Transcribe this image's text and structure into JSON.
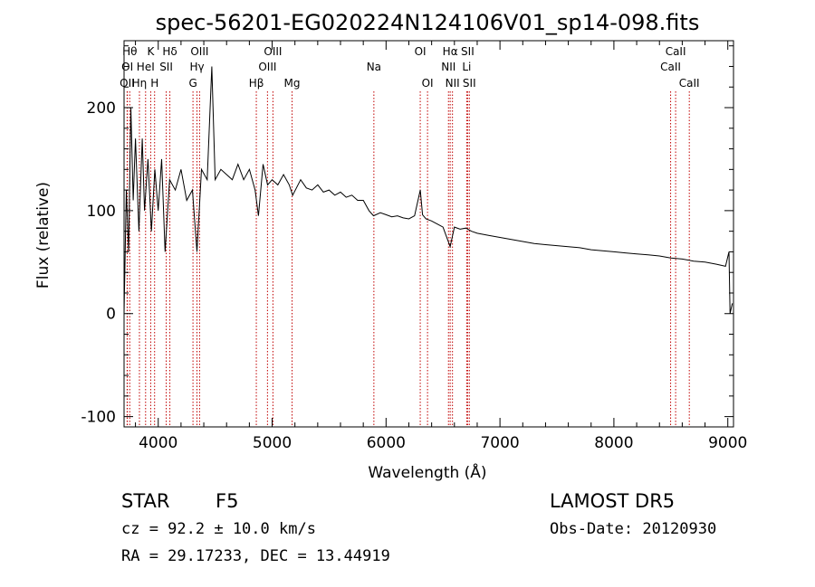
{
  "chart_data": {
    "type": "line",
    "title": "spec-56201-EG020224N124106V01_sp14-098.fits",
    "xlabel": "Wavelength (Å)",
    "ylabel": "Flux (relative)",
    "xlim": [
      3700,
      9050
    ],
    "ylim": [
      -110,
      265
    ],
    "xticks": [
      4000,
      5000,
      6000,
      7000,
      8000,
      9000
    ],
    "yticks": [
      -100,
      0,
      100,
      200
    ],
    "series": [
      {
        "values": [
          [
            3700,
            0
          ],
          [
            3720,
            120
          ],
          [
            3740,
            60
          ],
          [
            3760,
            200
          ],
          [
            3780,
            110
          ],
          [
            3800,
            170
          ],
          [
            3830,
            80
          ],
          [
            3860,
            170
          ],
          [
            3880,
            100
          ],
          [
            3910,
            150
          ],
          [
            3940,
            80
          ],
          [
            3970,
            140
          ],
          [
            4000,
            100
          ],
          [
            4030,
            150
          ],
          [
            4060,
            60
          ],
          [
            4100,
            130
          ],
          [
            4150,
            120
          ],
          [
            4200,
            140
          ],
          [
            4250,
            110
          ],
          [
            4300,
            120
          ],
          [
            4340,
            60
          ],
          [
            4380,
            140
          ],
          [
            4430,
            130
          ],
          [
            4470,
            240
          ],
          [
            4500,
            130
          ],
          [
            4550,
            140
          ],
          [
            4600,
            135
          ],
          [
            4650,
            130
          ],
          [
            4700,
            145
          ],
          [
            4750,
            130
          ],
          [
            4800,
            140
          ],
          [
            4850,
            120
          ],
          [
            4880,
            95
          ],
          [
            4920,
            145
          ],
          [
            4960,
            125
          ],
          [
            5000,
            130
          ],
          [
            5050,
            125
          ],
          [
            5100,
            135
          ],
          [
            5150,
            125
          ],
          [
            5180,
            115
          ],
          [
            5250,
            130
          ],
          [
            5300,
            122
          ],
          [
            5350,
            120
          ],
          [
            5400,
            125
          ],
          [
            5450,
            118
          ],
          [
            5500,
            120
          ],
          [
            5550,
            115
          ],
          [
            5600,
            118
          ],
          [
            5650,
            113
          ],
          [
            5700,
            115
          ],
          [
            5750,
            110
          ],
          [
            5800,
            110
          ],
          [
            5850,
            100
          ],
          [
            5890,
            95
          ],
          [
            5950,
            98
          ],
          [
            6000,
            96
          ],
          [
            6050,
            94
          ],
          [
            6100,
            95
          ],
          [
            6150,
            93
          ],
          [
            6200,
            92
          ],
          [
            6250,
            95
          ],
          [
            6300,
            120
          ],
          [
            6320,
            96
          ],
          [
            6350,
            92
          ],
          [
            6400,
            90
          ],
          [
            6450,
            87
          ],
          [
            6500,
            84
          ],
          [
            6563,
            65
          ],
          [
            6600,
            84
          ],
          [
            6650,
            82
          ],
          [
            6700,
            83
          ],
          [
            6750,
            80
          ],
          [
            6800,
            78
          ],
          [
            6900,
            76
          ],
          [
            7000,
            74
          ],
          [
            7100,
            72
          ],
          [
            7200,
            70
          ],
          [
            7300,
            68
          ],
          [
            7400,
            67
          ],
          [
            7500,
            66
          ],
          [
            7600,
            65
          ],
          [
            7700,
            64
          ],
          [
            7800,
            62
          ],
          [
            7900,
            61
          ],
          [
            8000,
            60
          ],
          [
            8100,
            59
          ],
          [
            8200,
            58
          ],
          [
            8300,
            57
          ],
          [
            8400,
            56
          ],
          [
            8500,
            54
          ],
          [
            8600,
            53
          ],
          [
            8700,
            51
          ],
          [
            8800,
            50
          ],
          [
            8900,
            48
          ],
          [
            8980,
            46
          ],
          [
            9010,
            60
          ],
          [
            9020,
            0
          ],
          [
            9040,
            10
          ]
        ]
      }
    ],
    "lines": [
      {
        "label": "OII",
        "wave": 3727,
        "row": 3
      },
      {
        "label": "Hθ",
        "wave": 3750,
        "row": 1
      },
      {
        "label": "Hη",
        "wave": 3835,
        "row": 3
      },
      {
        "label": "OI",
        "wave": 3729,
        "row": 2
      },
      {
        "label": "HeI",
        "wave": 3889,
        "row": 2
      },
      {
        "label": "K",
        "wave": 3934,
        "row": 1
      },
      {
        "label": "H",
        "wave": 3968,
        "row": 3
      },
      {
        "label": "SII",
        "wave": 4070,
        "row": 2
      },
      {
        "label": "Hδ",
        "wave": 4102,
        "row": 1
      },
      {
        "label": "G",
        "wave": 4305,
        "row": 3
      },
      {
        "label": "Hγ",
        "wave": 4340,
        "row": 2
      },
      {
        "label": "OIII",
        "wave": 4363,
        "row": 1
      },
      {
        "label": "Hβ",
        "wave": 4861,
        "row": 3
      },
      {
        "label": "OIII",
        "wave": 4959,
        "row": 2
      },
      {
        "label": "OIII",
        "wave": 5007,
        "row": 1
      },
      {
        "label": "Mg",
        "wave": 5175,
        "row": 3
      },
      {
        "label": "Na",
        "wave": 5893,
        "row": 2
      },
      {
        "label": "OI",
        "wave": 6300,
        "row": 1
      },
      {
        "label": "OI",
        "wave": 6364,
        "row": 3
      },
      {
        "label": "NII",
        "wave": 6548,
        "row": 2
      },
      {
        "label": "Hα",
        "wave": 6563,
        "row": 1
      },
      {
        "label": "NII",
        "wave": 6583,
        "row": 3
      },
      {
        "label": "SII",
        "wave": 6716,
        "row": 1
      },
      {
        "label": "Li",
        "wave": 6708,
        "row": 2
      },
      {
        "label": "SII",
        "wave": 6731,
        "row": 3
      },
      {
        "label": "CaII",
        "wave": 8498,
        "row": 2
      },
      {
        "label": "CaII",
        "wave": 8542,
        "row": 1
      },
      {
        "label": "CaII",
        "wave": 8662,
        "row": 3
      }
    ],
    "line_color": "#c00000",
    "grid": false
  },
  "info": {
    "object_class": "STAR",
    "subclass": "F5",
    "survey": "LAMOST DR5",
    "cz": "cz = 92.2 ± 10.0 km/s",
    "obs_date": "Obs-Date: 20120930",
    "coords": "RA =  29.17233, DEC =  13.44919"
  }
}
